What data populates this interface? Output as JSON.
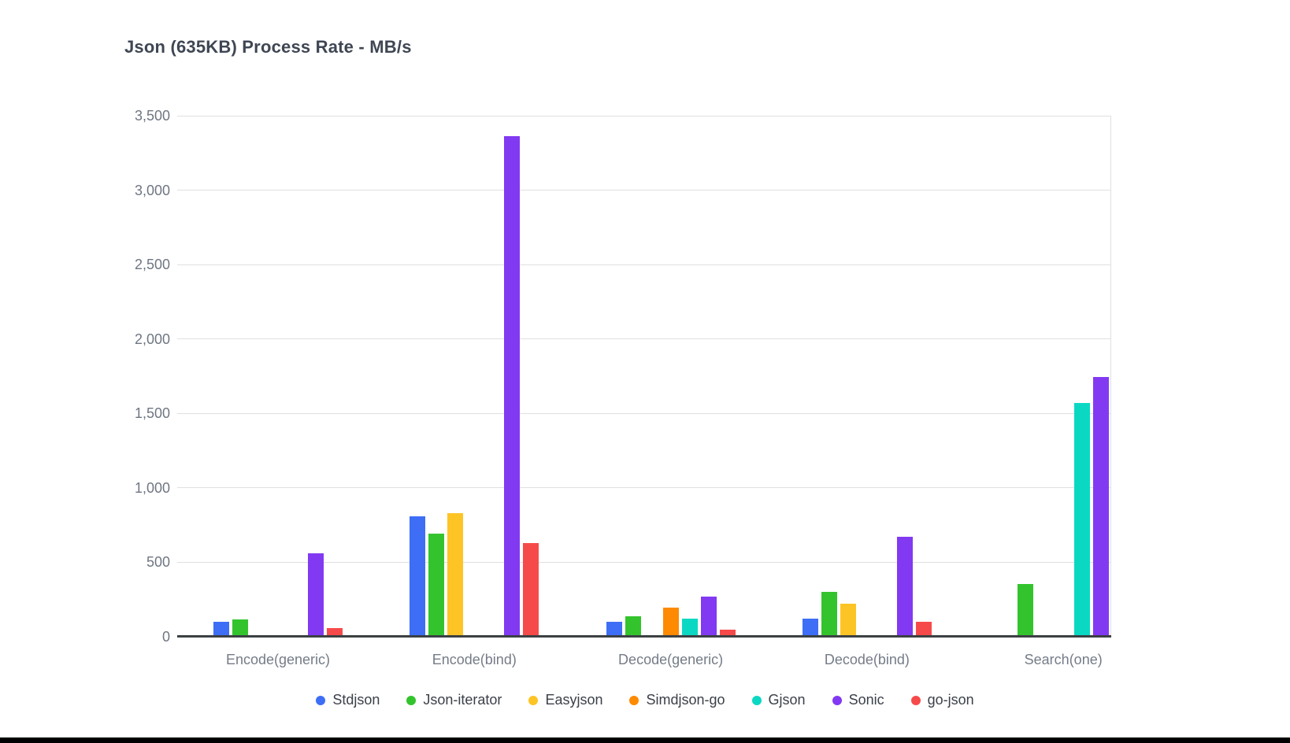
{
  "page": {
    "background_color": "#ffffff",
    "bottom_edge_bar_color": "#000000"
  },
  "chart_data": {
    "type": "bar",
    "title": "Json (635KB) Process Rate - MB/s",
    "xlabel": "",
    "ylabel": "",
    "ylim": [
      0,
      3500
    ],
    "grid": true,
    "legend_position": "bottom",
    "yticks": [
      0,
      500,
      1000,
      1500,
      2000,
      2500,
      3000,
      3500
    ],
    "ytick_labels": [
      "0",
      "500",
      "1,000",
      "1,500",
      "2,000",
      "2,500",
      "3,000",
      "3,500"
    ],
    "categories": [
      "Encode(generic)",
      "Encode(bind)",
      "Decode(generic)",
      "Decode(bind)",
      "Search(one)"
    ],
    "series": [
      {
        "name": "Stdjson",
        "color": "#3d6ef5",
        "values": [
          100,
          810,
          100,
          120,
          0
        ]
      },
      {
        "name": "Json-iterator",
        "color": "#33c42d",
        "values": [
          115,
          695,
          140,
          300,
          355
        ]
      },
      {
        "name": "Easyjson",
        "color": "#fdc425",
        "values": [
          0,
          830,
          0,
          220,
          0
        ]
      },
      {
        "name": "Simdjson-go",
        "color": "#fe8a01",
        "values": [
          0,
          0,
          195,
          0,
          0
        ]
      },
      {
        "name": "Gjson",
        "color": "#0bd8c3",
        "values": [
          0,
          0,
          120,
          0,
          1570
        ]
      },
      {
        "name": "Sonic",
        "color": "#8239f2",
        "values": [
          560,
          3360,
          270,
          670,
          1745
        ]
      },
      {
        "name": "go-json",
        "color": "#f64a4a",
        "values": [
          60,
          630,
          50,
          100,
          0
        ]
      }
    ],
    "axis_colors": {
      "gridline": "#e0e0e0",
      "axis_line": "#3b4043",
      "tick_text": "#6f7682",
      "legend_text": "#3b4048",
      "title_text": "#3f4653"
    }
  }
}
